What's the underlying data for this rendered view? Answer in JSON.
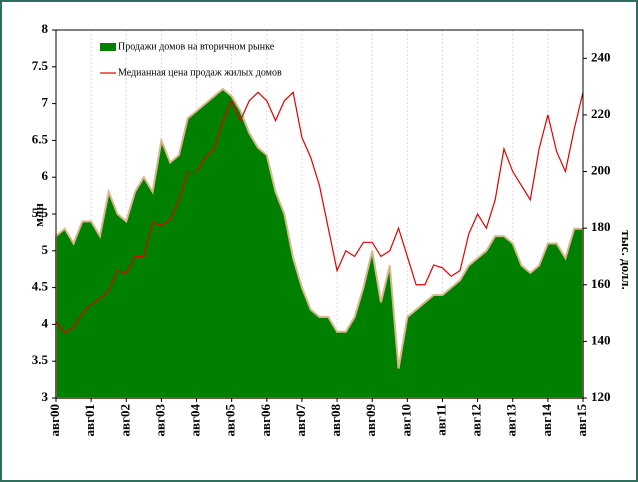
{
  "chart_data": {
    "type": "area-line",
    "categories": [
      "авг00",
      null,
      null,
      null,
      "авг01",
      null,
      null,
      null,
      "авг02",
      null,
      null,
      null,
      "авг03",
      null,
      null,
      null,
      "авг04",
      null,
      null,
      null,
      "авг05",
      null,
      null,
      null,
      "авг06",
      null,
      null,
      null,
      "авг07",
      null,
      null,
      null,
      "авг08",
      null,
      null,
      null,
      "авг09",
      null,
      null,
      null,
      "авг10",
      null,
      null,
      null,
      "авг11",
      null,
      null,
      null,
      "авг12",
      null,
      null,
      null,
      "авг13",
      null,
      null,
      null,
      "авг14",
      null,
      null,
      null,
      "авг15"
    ],
    "series": [
      {
        "name": "Продажи домов на вторичном рынке",
        "color": "#008000",
        "axis": "y",
        "values": [
          5.2,
          5.3,
          5.1,
          5.4,
          5.4,
          5.2,
          5.8,
          5.5,
          5.4,
          5.8,
          6.0,
          5.8,
          6.5,
          6.2,
          6.3,
          6.8,
          6.9,
          7.0,
          7.1,
          7.2,
          7.1,
          6.9,
          6.6,
          6.4,
          6.3,
          5.8,
          5.5,
          4.9,
          4.5,
          4.2,
          4.1,
          4.1,
          3.9,
          3.9,
          4.1,
          4.5,
          5.0,
          4.3,
          4.8,
          3.4,
          4.1,
          4.2,
          4.3,
          4.4,
          4.4,
          4.5,
          4.6,
          4.8,
          4.9,
          5.0,
          5.2,
          5.2,
          5.1,
          4.8,
          4.7,
          4.8,
          5.1,
          5.1,
          4.9,
          5.3,
          5.3
        ]
      },
      {
        "name": "Медианная цена продаж жилых домов",
        "color": "#e00000",
        "axis": "y2",
        "values": [
          147,
          143,
          145,
          150,
          153,
          155,
          158,
          165,
          164,
          170,
          170,
          182,
          181,
          183,
          190,
          200,
          200,
          205,
          208,
          218,
          225,
          218,
          225,
          228,
          225,
          218,
          225,
          228,
          212,
          205,
          195,
          180,
          165,
          172,
          170,
          175,
          175,
          170,
          172,
          180,
          170,
          160,
          160,
          167,
          166,
          163,
          165,
          178,
          185,
          180,
          190,
          208,
          200,
          195,
          190,
          208,
          220,
          207,
          200,
          215,
          228
        ]
      }
    ],
    "ylabel": "млн",
    "y2label": "тыс. долл.",
    "ylim": [
      3,
      8
    ],
    "yticks": [
      3,
      3.5,
      4,
      4.5,
      5,
      5.5,
      6,
      6.5,
      7,
      7.5,
      8
    ],
    "y2lim": [
      120,
      250
    ],
    "y2ticks": [
      120,
      140,
      160,
      180,
      200,
      220,
      240
    ],
    "grid": true
  }
}
